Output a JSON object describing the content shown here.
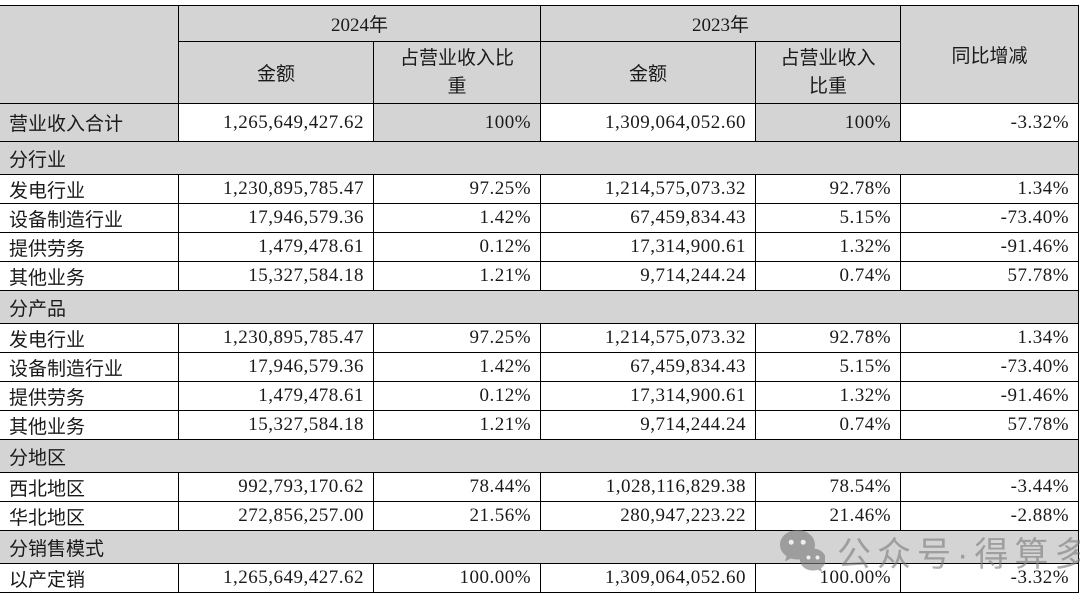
{
  "colors": {
    "header_bg": "#d4d4d4",
    "border": "#000000",
    "text": "#1a1a1a",
    "watermark": "#7d7d7d"
  },
  "watermark": {
    "icon": "wechat-icon",
    "text": "公众号·得算多"
  },
  "table": {
    "header": {
      "year_2024": "2024年",
      "year_2023": "2023年",
      "amount": "金额",
      "ratio_2024": "占营业收入比\n重",
      "ratio_2023": "占营业收入\n比重",
      "yoy": "同比增减"
    },
    "rows": [
      {
        "type": "data",
        "variant": "total",
        "label": "营业收入合计",
        "a2024": "1,265,649,427.62",
        "r2024": "100%",
        "a2023": "1,309,064,052.60",
        "r2023": "100%",
        "yoy": "-3.32%"
      },
      {
        "type": "section",
        "label": "分行业"
      },
      {
        "type": "data",
        "label": "发电行业",
        "a2024": "1,230,895,785.47",
        "r2024": "97.25%",
        "a2023": "1,214,575,073.32",
        "r2023": "92.78%",
        "yoy": "1.34%"
      },
      {
        "type": "data",
        "label": "设备制造行业",
        "a2024": "17,946,579.36",
        "r2024": "1.42%",
        "a2023": "67,459,834.43",
        "r2023": "5.15%",
        "yoy": "-73.40%"
      },
      {
        "type": "data",
        "label": "提供劳务",
        "a2024": "1,479,478.61",
        "r2024": "0.12%",
        "a2023": "17,314,900.61",
        "r2023": "1.32%",
        "yoy": "-91.46%"
      },
      {
        "type": "data",
        "label": "其他业务",
        "a2024": "15,327,584.18",
        "r2024": "1.21%",
        "a2023": "9,714,244.24",
        "r2023": "0.74%",
        "yoy": "57.78%"
      },
      {
        "type": "section",
        "label": "分产品"
      },
      {
        "type": "data",
        "label": "发电行业",
        "a2024": "1,230,895,785.47",
        "r2024": "97.25%",
        "a2023": "1,214,575,073.32",
        "r2023": "92.78%",
        "yoy": "1.34%"
      },
      {
        "type": "data",
        "label": "设备制造行业",
        "a2024": "17,946,579.36",
        "r2024": "1.42%",
        "a2023": "67,459,834.43",
        "r2023": "5.15%",
        "yoy": "-73.40%"
      },
      {
        "type": "data",
        "label": "提供劳务",
        "a2024": "1,479,478.61",
        "r2024": "0.12%",
        "a2023": "17,314,900.61",
        "r2023": "1.32%",
        "yoy": "-91.46%"
      },
      {
        "type": "data",
        "label": "其他业务",
        "a2024": "15,327,584.18",
        "r2024": "1.21%",
        "a2023": "9,714,244.24",
        "r2023": "0.74%",
        "yoy": "57.78%"
      },
      {
        "type": "section",
        "label": "分地区"
      },
      {
        "type": "data",
        "label": "西北地区",
        "a2024": "992,793,170.62",
        "r2024": "78.44%",
        "a2023": "1,028,116,829.38",
        "r2023": "78.54%",
        "yoy": "-3.44%"
      },
      {
        "type": "data",
        "label": "华北地区",
        "a2024": "272,856,257.00",
        "r2024": "21.56%",
        "a2023": "280,947,223.22",
        "r2023": "21.46%",
        "yoy": "-2.88%"
      },
      {
        "type": "section",
        "label": "分销售模式"
      },
      {
        "type": "data",
        "label": "以产定销",
        "a2024": "1,265,649,427.62",
        "r2024": "100.00%",
        "a2023": "1,309,064,052.60",
        "r2023": "100.00%",
        "yoy": "-3.32%"
      }
    ]
  }
}
